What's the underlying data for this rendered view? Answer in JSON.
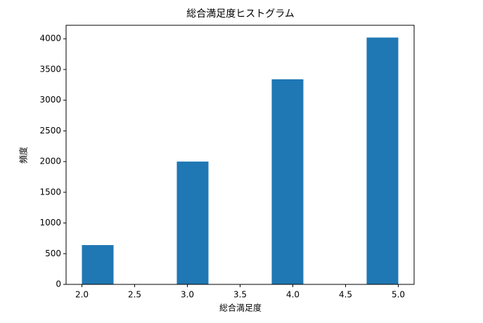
{
  "chart_data": {
    "type": "histogram",
    "title": "総合満足度ヒストグラム",
    "x_label": "総合満足度",
    "y_label": "頻度",
    "bins": [
      2.0,
      2.3,
      2.6,
      2.9,
      3.2,
      3.5,
      3.8,
      4.1,
      4.4,
      4.7,
      5.0
    ],
    "values": [
      640,
      0,
      0,
      2000,
      0,
      0,
      3340,
      0,
      0,
      4020
    ],
    "color": "#1f77b4",
    "xlim": [
      1.85,
      5.15
    ],
    "xticks": [
      {
        "value": 2,
        "label": "2.0"
      },
      2.5,
      {
        "value": 3,
        "label": "3.0"
      },
      3.5,
      {
        "value": 4,
        "label": "4.0"
      },
      4.5,
      {
        "value": 5,
        "label": "5.0"
      }
    ],
    "ylim": [
      0,
      4220
    ],
    "yticks": [
      0,
      500,
      1000,
      1500,
      2000,
      2500,
      3000,
      3500,
      4000
    ]
  }
}
